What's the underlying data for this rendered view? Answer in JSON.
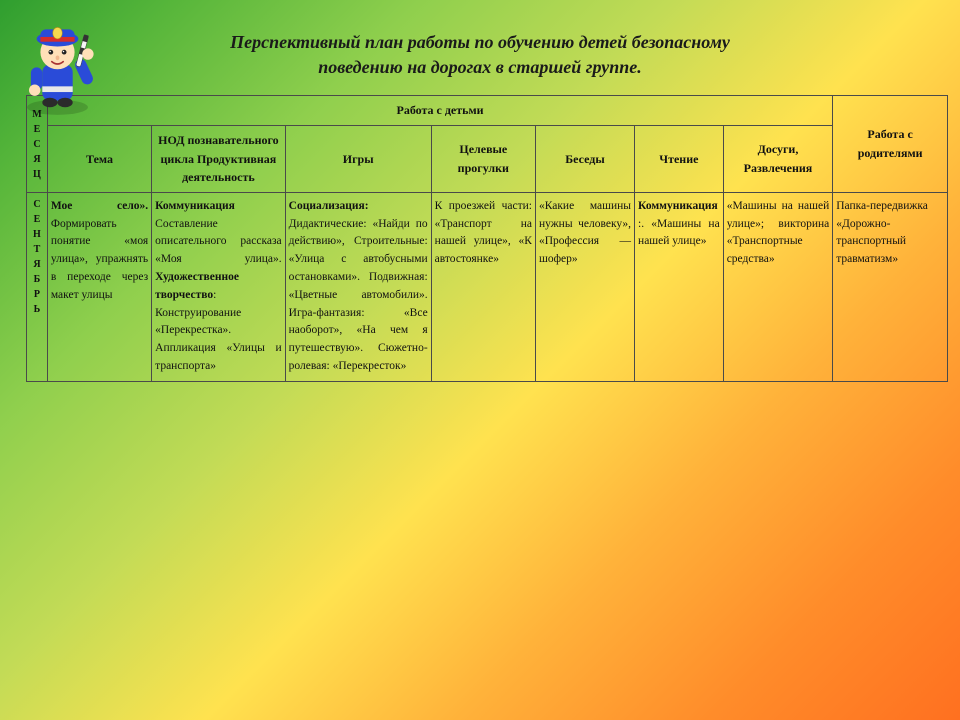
{
  "title_line1": "Перспективный план работы по обучению детей безопасному",
  "title_line2": "поведению на  дорогах в  старшей группе.",
  "header": {
    "month": "МЕСЯЦ",
    "children": "Работа с детьми",
    "parents": "Работа с родителями",
    "cols": {
      "theme": "Тема",
      "nod": "НОД познавательного цикла Продуктивная деятельность",
      "games": "Игры",
      "walks": "Целевые прогулки",
      "talks": "Беседы",
      "reading": "Чтение",
      "leisure": "Досуги, Развлечения"
    }
  },
  "row": {
    "month": "СЕНТЯБРЬ",
    "theme_b": "Мое село».",
    "theme": " Формировать понятие «моя улица», упражнять в переходе через макет улицы",
    "nod_b1": "Коммуникация",
    "nod_1": " Составление описательного рассказа «Моя улица». ",
    "nod_b2": "Художественное творчество",
    "nod_2": ": Конструирование «Перекрестка». Аппликация «Улицы и транспорта»",
    "games_b": " Социализация:",
    "games": " Дидактические: «Найди по действию», Строительные: «Улица с автобусными остановками». Подвижная: «Цветные автомобили». Игра-фантазия: «Все наоборот», «На чем я путешествую». Сюжетно-ролевая: «Перекресток»",
    "walks": "К проезжей части: «Транспорт на нашей улице», «К автостоянке»",
    "talks": "«Какие машины нужны человеку», «Профессия — шофер»",
    "reading_b": "Коммуникация",
    "reading": ":. «Машины на нашей улице»",
    "leisure": "«Машины на нашей улице»; викторина «Транспортные средства»",
    "parents": "Папка-передвижка «Дорожно-транспортный травматизм»"
  },
  "colors": {
    "border": "#4a4a4a"
  }
}
